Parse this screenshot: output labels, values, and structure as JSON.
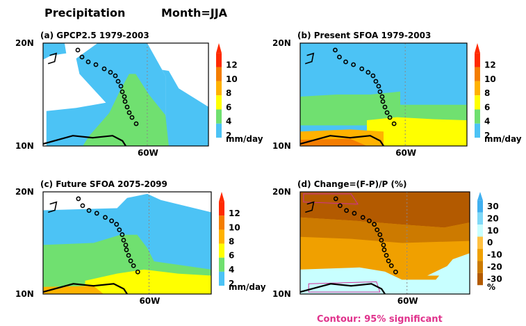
{
  "figure": {
    "title_left": "Precipitation",
    "title_right": "Month=JJA",
    "footer_note": "Contour: 95% significant"
  },
  "colors": {
    "white": "#ffffff",
    "blue": "#4cc3f5",
    "green": "#70e070",
    "yellow": "#ffff00",
    "orange": "#ffb200",
    "darkorange": "#f47d00",
    "red": "#ff2a00",
    "chg_dark": "#b35a00",
    "chg_mid": "#cc7a00",
    "chg_light": "#f0a000",
    "chg_neg": "#c8ffff",
    "contour": "#d0309a",
    "land": "#000000"
  },
  "axes": {
    "lat_top": "20N",
    "lat_bottom": "10N",
    "lon_tick": "60W"
  },
  "chart_data": [
    {
      "type": "heatmap",
      "title": "(a) GPCP2.5  1979-2003",
      "unit": "mm/day",
      "colorbar_ticks": [
        "12",
        "10",
        "8",
        "6",
        "4",
        "2"
      ],
      "ylim": [
        "10N",
        "20N"
      ],
      "dominant_ranges": [
        "2-4 mm/day ocean east",
        "4-6 mm/day near islands",
        "<2 mm/day north-west"
      ]
    },
    {
      "type": "heatmap",
      "title": "(b) Present SFOA 1979-2003",
      "unit": "mm/day",
      "colorbar_ticks": [
        "12",
        "10",
        "8",
        "6",
        "4",
        "2"
      ],
      "ylim": [
        "10N",
        "20N"
      ],
      "dominant_ranges": [
        "2-4 mm/day north",
        "4-6 mm/day central",
        "6-8 mm/day south",
        "8-10 mm/day coast"
      ]
    },
    {
      "type": "heatmap",
      "title": "(c) Future SFOA 2075-2099",
      "unit": "mm/day",
      "colorbar_ticks": [
        "12",
        "10",
        "8",
        "6",
        "4",
        "2"
      ],
      "ylim": [
        "10N",
        "20N"
      ],
      "dominant_ranges": [
        "<2 mm/day north",
        "2-4 mm/day central",
        "4-6 mm/day south",
        "6-8 mm/day coast"
      ]
    },
    {
      "type": "heatmap",
      "title": "(d) Change=(F-P)/P   (%)",
      "unit": "%",
      "colorbar_ticks": [
        "30",
        "20",
        "10",
        "0",
        "-10",
        "-20",
        "-30"
      ],
      "ylim": [
        "10N",
        "20N"
      ],
      "dominant_ranges": [
        "-30 to -20 % north",
        "-20 to -10 % central",
        "0 to 10 % south band"
      ]
    }
  ]
}
